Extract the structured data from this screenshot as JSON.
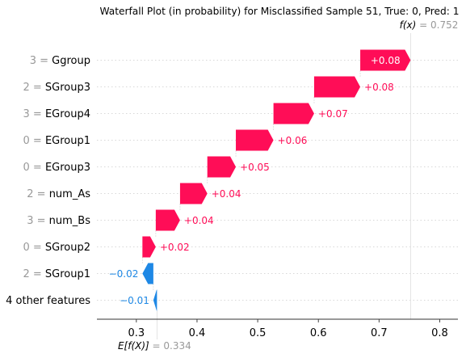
{
  "chart_data": {
    "type": "waterfall",
    "title": "Waterfall Plot (in probability) for Misclassified Sample 51, True: 0, Pred: 1",
    "output": {
      "symbol": "f(x)",
      "value_text": "0.752",
      "value": 0.752
    },
    "base": {
      "symbol": "E[f(X)]",
      "value_text": "0.334",
      "value": 0.334
    },
    "xlim": [
      0.235,
      0.83
    ],
    "xticks": [
      0.3,
      0.4,
      0.5,
      0.6,
      0.7,
      0.8
    ],
    "xtick_labels": [
      "0.3",
      "0.4",
      "0.5",
      "0.6",
      "0.7",
      "0.8"
    ],
    "features": [
      {
        "value": "3",
        "name": "Ggroup",
        "contribution": 0.083,
        "label": "+0.08"
      },
      {
        "value": "2",
        "name": "SGroup3",
        "contribution": 0.076,
        "label": "+0.08"
      },
      {
        "value": "3",
        "name": "EGroup4",
        "contribution": 0.067,
        "label": "+0.07"
      },
      {
        "value": "0",
        "name": "EGroup1",
        "contribution": 0.062,
        "label": "+0.06"
      },
      {
        "value": "0",
        "name": "EGroup3",
        "contribution": 0.047,
        "label": "+0.05"
      },
      {
        "value": "2",
        "name": "num_As",
        "contribution": 0.045,
        "label": "+0.04"
      },
      {
        "value": "3",
        "name": "num_Bs",
        "contribution": 0.04,
        "label": "+0.04"
      },
      {
        "value": "0",
        "name": "SGroup2",
        "contribution": 0.022,
        "label": "+0.02"
      },
      {
        "value": "2",
        "name": "SGroup1",
        "contribution": -0.018,
        "label": "−0.02"
      },
      {
        "value": "",
        "name": "4 other features",
        "contribution": -0.006,
        "label": "−0.01"
      }
    ],
    "colors": {
      "positive": "#ff0d57",
      "negative": "#1e88e5",
      "feature_value": "#999999",
      "grid": "#cccccc"
    }
  }
}
